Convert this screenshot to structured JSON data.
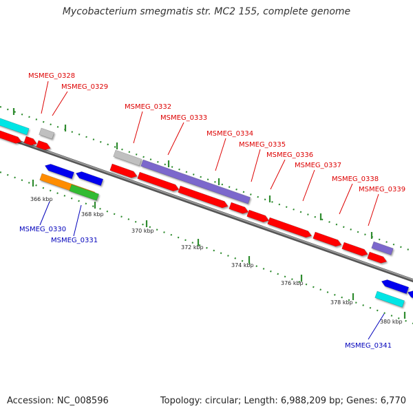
{
  "title": "Mycobacterium smegmatis str. MC2 155, complete genome",
  "footer": {
    "accession": "Accession: NC_008596",
    "info": "Topology: circular; Length: 6,988,209 bp; Genes: 6,770"
  },
  "colors": {
    "forward_cds": "#ff0000",
    "reverse_cds": "#0000ee",
    "forward_label": "#dd0000",
    "reverse_label": "#0000bb",
    "trna_cyan": "#00e5e5",
    "rrna_orange": "#ff8c00",
    "misc_green": "#33bb33",
    "purple": "#7b68cc",
    "grey": "#c0c0c0",
    "tick_green": "#2e8b2e"
  },
  "ticks": [
    "366 kbp",
    "368 kbp",
    "370 kbp",
    "372 kbp",
    "374 kbp",
    "376 kbp",
    "378 kbp",
    "380 kbp"
  ],
  "gene_labels": [
    {
      "text": "MSMEG_0328",
      "strand": "forward"
    },
    {
      "text": "MSMEG_0329",
      "strand": "forward"
    },
    {
      "text": "MSMEG_0332",
      "strand": "forward"
    },
    {
      "text": "MSMEG_0333",
      "strand": "forward"
    },
    {
      "text": "MSMEG_0334",
      "strand": "forward"
    },
    {
      "text": "MSMEG_0335",
      "strand": "forward"
    },
    {
      "text": "MSMEG_0336",
      "strand": "forward"
    },
    {
      "text": "MSMEG_0337",
      "strand": "forward"
    },
    {
      "text": "MSMEG_0338",
      "strand": "forward"
    },
    {
      "text": "MSMEG_0339",
      "strand": "forward"
    },
    {
      "text": "MSMEG_0330",
      "strand": "reverse"
    },
    {
      "text": "MSMEG_0331",
      "strand": "reverse"
    },
    {
      "text": "MSMEG_0341",
      "strand": "reverse"
    }
  ]
}
